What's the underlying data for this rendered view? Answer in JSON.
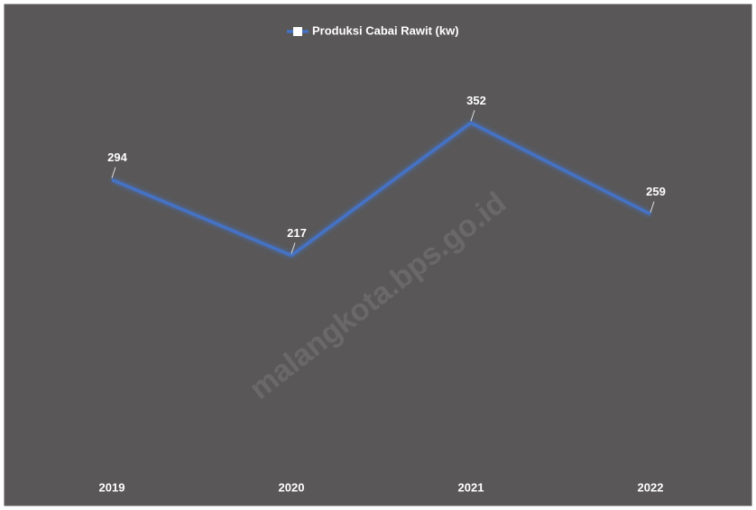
{
  "chart_data": {
    "type": "line",
    "categories": [
      "2019",
      "2020",
      "2021",
      "2022"
    ],
    "series": [
      {
        "name": "Produksi Cabai Rawit (kw)",
        "color": "#4472c4",
        "values": [
          294,
          217,
          352,
          259
        ]
      }
    ],
    "ylim": [
      0,
      400
    ],
    "legend": "top",
    "watermark": "malangkota.bps.go.id"
  }
}
